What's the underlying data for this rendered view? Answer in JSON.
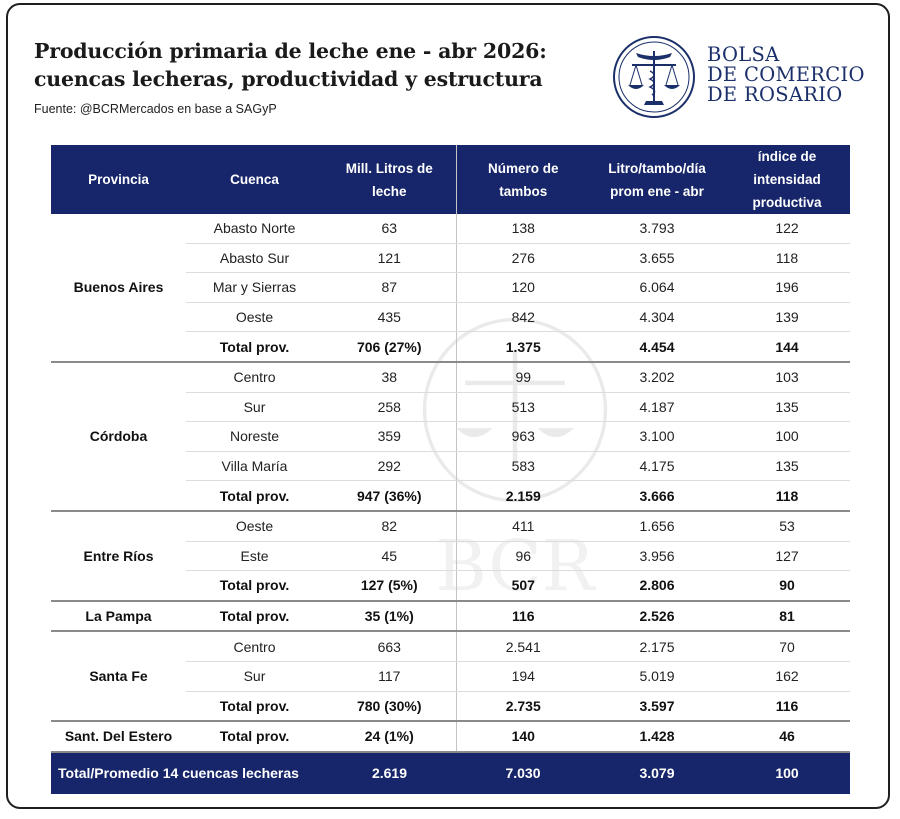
{
  "header": {
    "title_line1": "Producción primaria de leche ene - abr 2026:",
    "title_line2": "cuencas lecheras, productividad y estructura",
    "source": "Fuente: @BCRMercados en base a SAGyP"
  },
  "logo": {
    "line1": "BOLSA",
    "line2": "DE COMERCIO",
    "line3": "DE ROSARIO",
    "watermark_text": "BCR",
    "brand_color": "#1b2f6b"
  },
  "colors": {
    "header_bg": "#17266a",
    "header_text": "#ffffff"
  },
  "table": {
    "headers": {
      "provincia": "Provincia",
      "cuenca": "Cuenca",
      "litros": "Mill. Litros de leche",
      "tambos": "Número de tambos",
      "litro_tambo": "Litro/tambo/día prom ene - abr",
      "indice": "índice de intensidad productiva"
    },
    "groups": [
      {
        "provincia": "Buenos Aires",
        "rows": [
          {
            "cuenca": "Abasto Norte",
            "litros": "63",
            "tambos": "138",
            "litro_tambo": "3.793",
            "indice": "122"
          },
          {
            "cuenca": "Abasto Sur",
            "litros": "121",
            "tambos": "276",
            "litro_tambo": "3.655",
            "indice": "118"
          },
          {
            "cuenca": "Mar y Sierras",
            "litros": "87",
            "tambos": "120",
            "litro_tambo": "6.064",
            "indice": "196"
          },
          {
            "cuenca": "Oeste",
            "litros": "435",
            "tambos": "842",
            "litro_tambo": "4.304",
            "indice": "139"
          }
        ],
        "total": {
          "cuenca": "Total prov.",
          "litros": "706 (27%)",
          "tambos": "1.375",
          "litro_tambo": "4.454",
          "indice": "144"
        }
      },
      {
        "provincia": "Córdoba",
        "rows": [
          {
            "cuenca": "Centro",
            "litros": "38",
            "tambos": "99",
            "litro_tambo": "3.202",
            "indice": "103"
          },
          {
            "cuenca": "Sur",
            "litros": "258",
            "tambos": "513",
            "litro_tambo": "4.187",
            "indice": "135"
          },
          {
            "cuenca": "Noreste",
            "litros": "359",
            "tambos": "963",
            "litro_tambo": "3.100",
            "indice": "100"
          },
          {
            "cuenca": "Villa María",
            "litros": "292",
            "tambos": "583",
            "litro_tambo": "4.175",
            "indice": "135"
          }
        ],
        "total": {
          "cuenca": "Total prov.",
          "litros": "947 (36%)",
          "tambos": "2.159",
          "litro_tambo": "3.666",
          "indice": "118"
        }
      },
      {
        "provincia": "Entre Ríos",
        "rows": [
          {
            "cuenca": "Oeste",
            "litros": "82",
            "tambos": "411",
            "litro_tambo": "1.656",
            "indice": "53"
          },
          {
            "cuenca": "Este",
            "litros": "45",
            "tambos": "96",
            "litro_tambo": "3.956",
            "indice": "127"
          }
        ],
        "total": {
          "cuenca": "Total prov.",
          "litros": "127 (5%)",
          "tambos": "507",
          "litro_tambo": "2.806",
          "indice": "90"
        }
      },
      {
        "provincia": "La Pampa",
        "rows": [],
        "total": {
          "cuenca": "Total prov.",
          "litros": "35 (1%)",
          "tambos": "116",
          "litro_tambo": "2.526",
          "indice": "81"
        }
      },
      {
        "provincia": "Santa Fe",
        "rows": [
          {
            "cuenca": "Centro",
            "litros": "663",
            "tambos": "2.541",
            "litro_tambo": "2.175",
            "indice": "70"
          },
          {
            "cuenca": "Sur",
            "litros": "117",
            "tambos": "194",
            "litro_tambo": "5.019",
            "indice": "162"
          }
        ],
        "total": {
          "cuenca": "Total prov.",
          "litros": "780 (30%)",
          "tambos": "2.735",
          "litro_tambo": "3.597",
          "indice": "116"
        }
      },
      {
        "provincia": "Sant. Del Estero",
        "rows": [],
        "total": {
          "cuenca": "Total prov.",
          "litros": "24 (1%)",
          "tambos": "140",
          "litro_tambo": "1.428",
          "indice": "46"
        }
      }
    ],
    "footer": {
      "label": "Total/Promedio 14 cuencas lecheras",
      "litros": "2.619",
      "tambos": "7.030",
      "litro_tambo": "3.079",
      "indice": "100"
    }
  }
}
